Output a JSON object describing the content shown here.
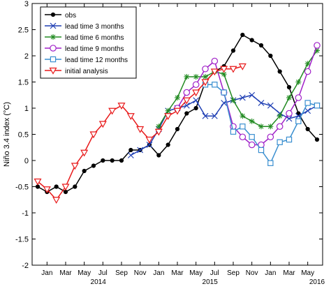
{
  "chart_data": {
    "type": "line",
    "title": "",
    "xlabel": "",
    "ylabel": "Niño 3.4 index (°C)",
    "ylim": [
      -2,
      3
    ],
    "yticks": [
      -2,
      -1.5,
      -1,
      -0.5,
      0,
      0.5,
      1,
      1.5,
      2,
      2.5,
      3
    ],
    "xlim": [
      0,
      30
    ],
    "xticks": [
      {
        "x": 1,
        "label": "Jan"
      },
      {
        "x": 3,
        "label": "Mar"
      },
      {
        "x": 5,
        "label": "May"
      },
      {
        "x": 7,
        "label": "Jul"
      },
      {
        "x": 9,
        "label": "Sep"
      },
      {
        "x": 11,
        "label": "Nov"
      },
      {
        "x": 13,
        "label": "Jan"
      },
      {
        "x": 15,
        "label": "Mar"
      },
      {
        "x": 17,
        "label": "May"
      },
      {
        "x": 19,
        "label": "Jul"
      },
      {
        "x": 21,
        "label": "Sep"
      },
      {
        "x": 23,
        "label": "Nov"
      },
      {
        "x": 25,
        "label": "Jan"
      },
      {
        "x": 27,
        "label": "Mar"
      },
      {
        "x": 29,
        "label": "May"
      }
    ],
    "year_labels": [
      {
        "x": 6.5,
        "label": "2014"
      },
      {
        "x": 18.5,
        "label": "2015"
      },
      {
        "x": 30,
        "label": "2016"
      }
    ],
    "legend_position": "top-left",
    "series": [
      {
        "name": "obs",
        "color": "#000000",
        "marker": "dot",
        "x": [
          0,
          1,
          2,
          3,
          4,
          5,
          6,
          7,
          8,
          9,
          10,
          11,
          12,
          13,
          14,
          15,
          16,
          17,
          18,
          19,
          20,
          21,
          22,
          23,
          24,
          25,
          26,
          27,
          28,
          29,
          30
        ],
        "y": [
          -0.5,
          -0.6,
          -0.5,
          -0.6,
          -0.5,
          -0.2,
          -0.1,
          0,
          0,
          0,
          0.2,
          0.2,
          0.3,
          0.1,
          0.3,
          0.6,
          0.9,
          1,
          1.5,
          1.7,
          1.8,
          2.1,
          2.4,
          2.3,
          2.2,
          2,
          1.7,
          1.4,
          0.9,
          0.6,
          0.4
        ]
      },
      {
        "name": "lead time 3 months",
        "color": "#1f3fb4",
        "marker": "x",
        "x": [
          10,
          11,
          12,
          13,
          14,
          15,
          16,
          17,
          18,
          19,
          20,
          21,
          22,
          23,
          24,
          25,
          26,
          27,
          28,
          29,
          30
        ],
        "y": [
          0.1,
          0.2,
          0.3,
          0.6,
          0.95,
          1,
          1.05,
          1.15,
          0.85,
          0.85,
          1.1,
          1.15,
          1.2,
          1.25,
          1.1,
          1.05,
          0.9,
          0.8,
          0.85,
          0.95,
          1.05
        ]
      },
      {
        "name": "lead time 6 months",
        "color": "#228b22",
        "marker": "star",
        "x": [
          13,
          14,
          15,
          16,
          17,
          18,
          19,
          20,
          21,
          22,
          23,
          24,
          25,
          26,
          27,
          28,
          29,
          30
        ],
        "y": [
          0.65,
          0.95,
          1.2,
          1.6,
          1.6,
          1.6,
          1.7,
          1.65,
          1.15,
          0.85,
          0.75,
          0.65,
          0.65,
          0.85,
          1.2,
          1.5,
          1.85,
          2.1
        ]
      },
      {
        "name": "lead time 9 months",
        "color": "#a020c8",
        "marker": "circle",
        "x": [
          15,
          16,
          17,
          18,
          19,
          20,
          21,
          22,
          23,
          24,
          25,
          26,
          27,
          28,
          29,
          30
        ],
        "y": [
          1,
          1.3,
          1.45,
          1.75,
          1.9,
          1.3,
          0.65,
          0.45,
          0.3,
          0.3,
          0.45,
          0.65,
          0.9,
          1.2,
          1.7,
          2.2
        ]
      },
      {
        "name": "lead time 12 months",
        "color": "#3a8fd0",
        "marker": "square",
        "x": [
          18,
          19,
          20,
          21,
          22,
          23,
          24,
          25,
          26,
          27,
          28,
          29,
          30
        ],
        "y": [
          1.45,
          1.45,
          1.3,
          0.55,
          0.65,
          0.45,
          0.2,
          -0.05,
          0.35,
          0.4,
          0.75,
          1.1,
          1.05
        ]
      },
      {
        "name": "initial analysis",
        "color": "#e8191a",
        "marker": "triangle-down",
        "x": [
          0,
          1,
          2,
          3,
          4,
          5,
          6,
          7,
          8,
          9,
          10,
          11,
          12,
          13,
          14,
          15,
          16,
          17,
          18,
          19,
          20,
          21,
          22
        ],
        "y": [
          -0.4,
          -0.55,
          -0.75,
          -0.5,
          -0.1,
          0.15,
          0.5,
          0.7,
          0.95,
          1.05,
          0.85,
          0.6,
          0.4,
          0.55,
          0.85,
          0.95,
          1.15,
          1.3,
          1.5,
          1.7,
          1.75,
          1.75,
          1.8
        ]
      }
    ]
  }
}
